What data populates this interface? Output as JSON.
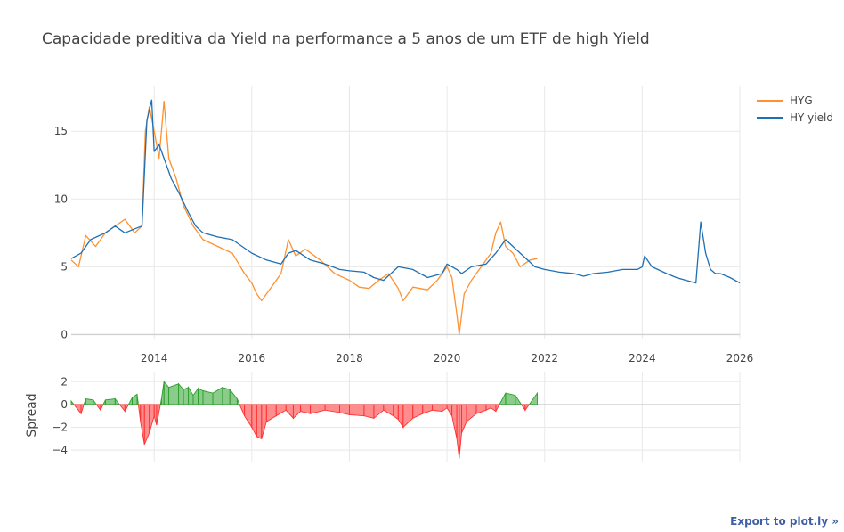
{
  "export_label": "Export to plot.ly »",
  "chart_data": {
    "type": "line",
    "title": "Capacidade preditiva da Yield na performance a 5 anos de um ETF de high Yield",
    "xlabel": "",
    "xlim": [
      2012.3,
      2026
    ],
    "xticks": [
      2014,
      2016,
      2018,
      2020,
      2022,
      2024,
      2026
    ],
    "xtick_labels": [
      "2014",
      "2016",
      "2018",
      "2020",
      "2022",
      "2024",
      "2026"
    ],
    "top_panel": {
      "ylabel": "",
      "ylim": [
        -0.3,
        18.3
      ],
      "yticks": [
        0,
        5,
        10,
        15
      ],
      "ytick_labels": [
        "0",
        "5",
        "10",
        "15"
      ],
      "series": [
        {
          "name": "HYG",
          "color": "#ff9130",
          "x": [
            2012.3,
            2012.45,
            2012.6,
            2012.8,
            2013.0,
            2013.2,
            2013.4,
            2013.6,
            2013.75,
            2013.82,
            2013.9,
            2014.0,
            2014.1,
            2014.2,
            2014.3,
            2014.45,
            2014.6,
            2014.8,
            2015.0,
            2015.3,
            2015.6,
            2015.85,
            2016.0,
            2016.1,
            2016.2,
            2016.4,
            2016.6,
            2016.75,
            2016.9,
            2017.1,
            2017.4,
            2017.7,
            2018.0,
            2018.2,
            2018.4,
            2018.6,
            2018.8,
            2019.0,
            2019.1,
            2019.3,
            2019.6,
            2019.8,
            2020.0,
            2020.1,
            2020.2,
            2020.25,
            2020.35,
            2020.5,
            2020.7,
            2020.9,
            2021.0,
            2021.1,
            2021.2,
            2021.35,
            2021.5,
            2021.7,
            2021.85
          ],
          "y": [
            5.5,
            5.0,
            7.3,
            6.5,
            7.5,
            8.0,
            8.5,
            7.5,
            8.0,
            15.0,
            16.8,
            15.0,
            13.0,
            17.2,
            13.0,
            11.5,
            9.5,
            8.0,
            7.0,
            6.5,
            6.0,
            4.5,
            3.8,
            3.0,
            2.5,
            3.5,
            4.5,
            7.0,
            5.8,
            6.3,
            5.5,
            4.5,
            4.0,
            3.5,
            3.4,
            4.0,
            4.5,
            3.4,
            2.5,
            3.5,
            3.3,
            4.0,
            5.0,
            4.2,
            1.5,
            0.0,
            3.0,
            4.0,
            5.0,
            6.0,
            7.5,
            8.3,
            6.5,
            6.0,
            5.0,
            5.5,
            5.6
          ]
        },
        {
          "name": "HY yield",
          "color": "#1f6fb3",
          "x": [
            2012.3,
            2012.5,
            2012.7,
            2013.0,
            2013.2,
            2013.4,
            2013.6,
            2013.75,
            2013.85,
            2013.95,
            2014.0,
            2014.1,
            2014.2,
            2014.35,
            2014.5,
            2014.7,
            2014.85,
            2015.0,
            2015.3,
            2015.6,
            2015.8,
            2016.0,
            2016.3,
            2016.6,
            2016.75,
            2016.9,
            2017.2,
            2017.5,
            2017.8,
            2018.0,
            2018.3,
            2018.5,
            2018.7,
            2019.0,
            2019.3,
            2019.6,
            2019.9,
            2020.0,
            2020.2,
            2020.3,
            2020.5,
            2020.8,
            2021.0,
            2021.2,
            2021.5,
            2021.8,
            2022.0,
            2022.3,
            2022.6,
            2022.8,
            2023.0,
            2023.3,
            2023.6,
            2023.9,
            2024.0,
            2024.05,
            2024.2,
            2024.5,
            2024.7,
            2024.9,
            2025.0,
            2025.1,
            2025.2,
            2025.3,
            2025.4,
            2025.5,
            2025.6,
            2025.8,
            2026.0
          ],
          "y": [
            5.6,
            6.0,
            7.0,
            7.5,
            8.0,
            7.5,
            7.8,
            8.0,
            15.8,
            17.3,
            13.5,
            14.0,
            13.0,
            11.5,
            10.5,
            9.0,
            8.0,
            7.5,
            7.2,
            7.0,
            6.5,
            6.0,
            5.5,
            5.2,
            6.0,
            6.2,
            5.5,
            5.2,
            4.8,
            4.7,
            4.6,
            4.2,
            4.0,
            5.0,
            4.8,
            4.2,
            4.5,
            5.2,
            4.8,
            4.5,
            5.0,
            5.2,
            6.0,
            7.0,
            6.0,
            5.0,
            4.8,
            4.6,
            4.5,
            4.3,
            4.5,
            4.6,
            4.8,
            4.8,
            5.0,
            5.8,
            5.0,
            4.5,
            4.2,
            4.0,
            3.9,
            3.8,
            8.3,
            6.0,
            4.8,
            4.5,
            4.5,
            4.2,
            3.8
          ]
        }
      ]
    },
    "bottom_panel": {
      "ylabel": "Spread",
      "ylim": [
        -5,
        2.8
      ],
      "yticks": [
        2,
        0,
        -2,
        -4
      ],
      "ytick_labels": [
        "2",
        "0",
        "−2",
        "−4"
      ],
      "series": [
        {
          "name": "Spread",
          "positive_color": "#2ca02c",
          "negative_color": "#ff3030",
          "x": [
            2012.3,
            2012.5,
            2012.6,
            2012.75,
            2012.9,
            2013.0,
            2013.2,
            2013.4,
            2013.55,
            2013.65,
            2013.72,
            2013.8,
            2013.9,
            2014.0,
            2014.05,
            2014.15,
            2014.2,
            2014.3,
            2014.5,
            2014.6,
            2014.7,
            2014.8,
            2014.9,
            2015.0,
            2015.2,
            2015.4,
            2015.55,
            2015.7,
            2015.85,
            2016.0,
            2016.1,
            2016.2,
            2016.3,
            2016.5,
            2016.7,
            2016.85,
            2017.0,
            2017.2,
            2017.5,
            2017.8,
            2018.0,
            2018.3,
            2018.5,
            2018.7,
            2018.9,
            2019.0,
            2019.1,
            2019.3,
            2019.5,
            2019.7,
            2019.9,
            2020.0,
            2020.1,
            2020.2,
            2020.25,
            2020.3,
            2020.4,
            2020.6,
            2020.8,
            2020.9,
            2021.0,
            2021.2,
            2021.4,
            2021.6,
            2021.85
          ],
          "y": [
            0.3,
            -0.8,
            0.5,
            0.4,
            -0.5,
            0.4,
            0.5,
            -0.6,
            0.6,
            0.9,
            -1.5,
            -3.5,
            -2.5,
            -1.0,
            -1.8,
            0.5,
            2.0,
            1.5,
            1.8,
            1.3,
            1.5,
            0.8,
            1.4,
            1.2,
            1.0,
            1.5,
            1.3,
            0.5,
            -1.0,
            -2.0,
            -2.8,
            -3.0,
            -1.5,
            -1.0,
            -0.5,
            -1.2,
            -0.6,
            -0.8,
            -0.5,
            -0.7,
            -0.9,
            -1.0,
            -1.2,
            -0.5,
            -1.0,
            -1.3,
            -2.0,
            -1.2,
            -0.8,
            -0.5,
            -0.6,
            -0.3,
            -1.0,
            -3.0,
            -4.7,
            -2.5,
            -1.5,
            -0.8,
            -0.5,
            -0.3,
            -0.6,
            1.0,
            0.8,
            -0.5,
            1.0
          ]
        }
      ]
    }
  }
}
